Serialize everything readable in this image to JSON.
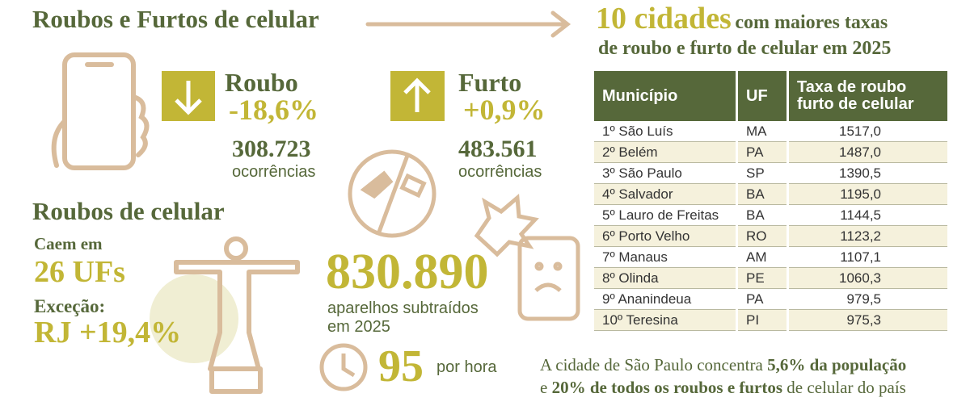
{
  "left": {
    "title": "Roubos e Furtos de celular",
    "roubo": {
      "label": "Roubo",
      "change": "-18,6%",
      "count": "308.723",
      "unit": "ocorrências"
    },
    "furto": {
      "label": "Furto",
      "change": "+0,9%",
      "count": "483.561",
      "unit": "ocorrências"
    },
    "section": {
      "title": "Roubos de celular",
      "fall_label": "Caem em",
      "fall_value": "26 UFs",
      "exception_label": "Exceção:",
      "exception_value": "RJ +19,4%"
    },
    "total": {
      "value": "830.890",
      "line1": "aparelhos subtraídos",
      "line2": "em 2025"
    },
    "hourly": {
      "value": "95",
      "unit": "por hora"
    }
  },
  "right": {
    "title_big": "10 cidades",
    "title_rest": "com maiores taxas",
    "title_line2": "de roubo e furto de celular em 2025",
    "table": {
      "headers": [
        "Município",
        "UF",
        "Taxa de roubo",
        "furto de celular"
      ],
      "rows": [
        [
          "1º São Luís",
          "MA",
          "1517,0"
        ],
        [
          "2º Belém",
          "PA",
          "1487,0"
        ],
        [
          "3º São Paulo",
          "SP",
          "1390,5"
        ],
        [
          "4º Salvador",
          "BA",
          "1195,0"
        ],
        [
          "5º Lauro de Freitas",
          "BA",
          "1144,5"
        ],
        [
          "6º Porto Velho",
          "RO",
          "1123,2"
        ],
        [
          "7º Manaus",
          "AM",
          "1107,1"
        ],
        [
          "8º Olinda",
          "PE",
          "1060,3"
        ],
        [
          "9º Ananindeua",
          "PA",
          "979,5"
        ],
        [
          "10º Teresina",
          "PI",
          "975,3"
        ]
      ]
    },
    "footer": {
      "part1": "A cidade de São Paulo concentra ",
      "bold1": "5,6% da população",
      "part2": "e ",
      "bold2": "20% de todos os roubos e furtos",
      "part3": " de celular do país"
    }
  }
}
